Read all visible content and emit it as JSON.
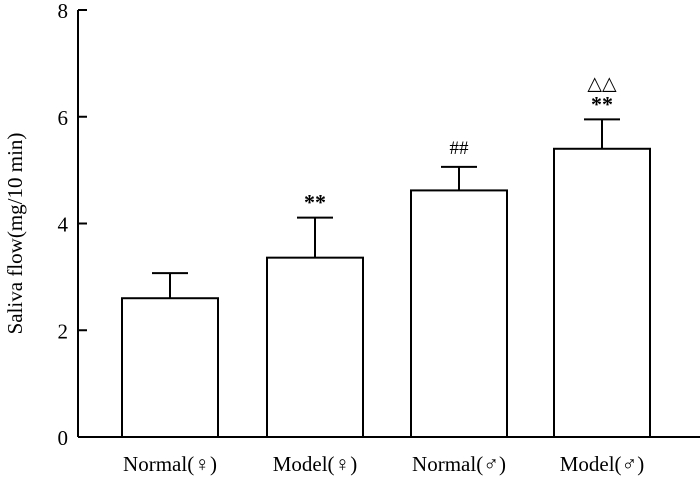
{
  "chart_data": {
    "type": "bar",
    "title": "",
    "xlabel": "",
    "ylabel": "Saliva flow(mg/10 min)",
    "ylim": [
      0,
      8
    ],
    "yticks": [
      0,
      2,
      4,
      6,
      8
    ],
    "categories": [
      "Normal(♀)",
      "Model(♀)",
      "Normal(♂)",
      "Model(♂)"
    ],
    "values": [
      2.6,
      3.36,
      4.62,
      5.4
    ],
    "errors": [
      0.47,
      0.75,
      0.44,
      0.55
    ],
    "annotations": [
      "",
      "**",
      "##",
      "**"
    ],
    "annotations_top": [
      "",
      "",
      "",
      "△△"
    ],
    "grid": false,
    "legend": "none",
    "colors": {
      "bar_fill": "#ffffff",
      "bar_stroke": "#000000",
      "axis": "#000000"
    }
  }
}
